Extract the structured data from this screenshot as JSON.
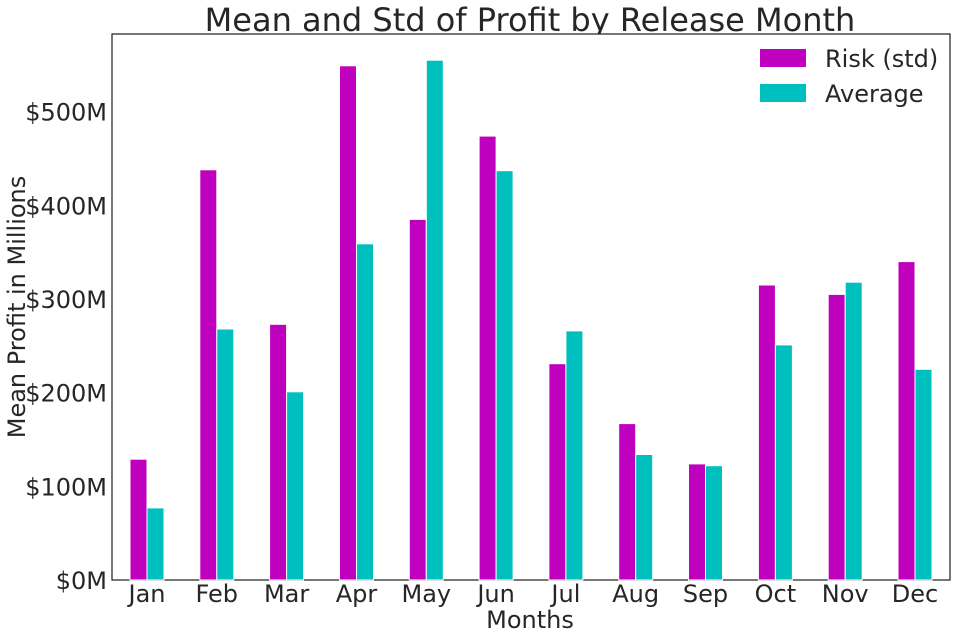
{
  "chart_data": {
    "type": "bar",
    "title": "Mean and Std of Profit by Release Month",
    "xlabel": "Months",
    "ylabel": "Mean Profit in Millions",
    "categories": [
      "Jan",
      "Feb",
      "Mar",
      "Apr",
      "May",
      "Jun",
      "Jul",
      "Aug",
      "Sep",
      "Oct",
      "Nov",
      "Dec"
    ],
    "series": [
      {
        "name": "Risk (std)",
        "color": "#bf00bf",
        "values": [
          129,
          438,
          273,
          549,
          385,
          474,
          231,
          167,
          124,
          315,
          305,
          340
        ]
      },
      {
        "name": "Average",
        "color": "#00bfbf",
        "values": [
          77,
          268,
          201,
          359,
          555,
          437,
          266,
          134,
          122,
          251,
          318,
          225
        ]
      }
    ],
    "ylim": [
      0,
      583
    ],
    "yticks": [
      0,
      100,
      200,
      300,
      400,
      500
    ],
    "ytick_labels": [
      "$0M",
      "$100M",
      "$200M",
      "$300M",
      "$400M",
      "$500M"
    ],
    "grid": false,
    "legend_position": "top-right"
  }
}
